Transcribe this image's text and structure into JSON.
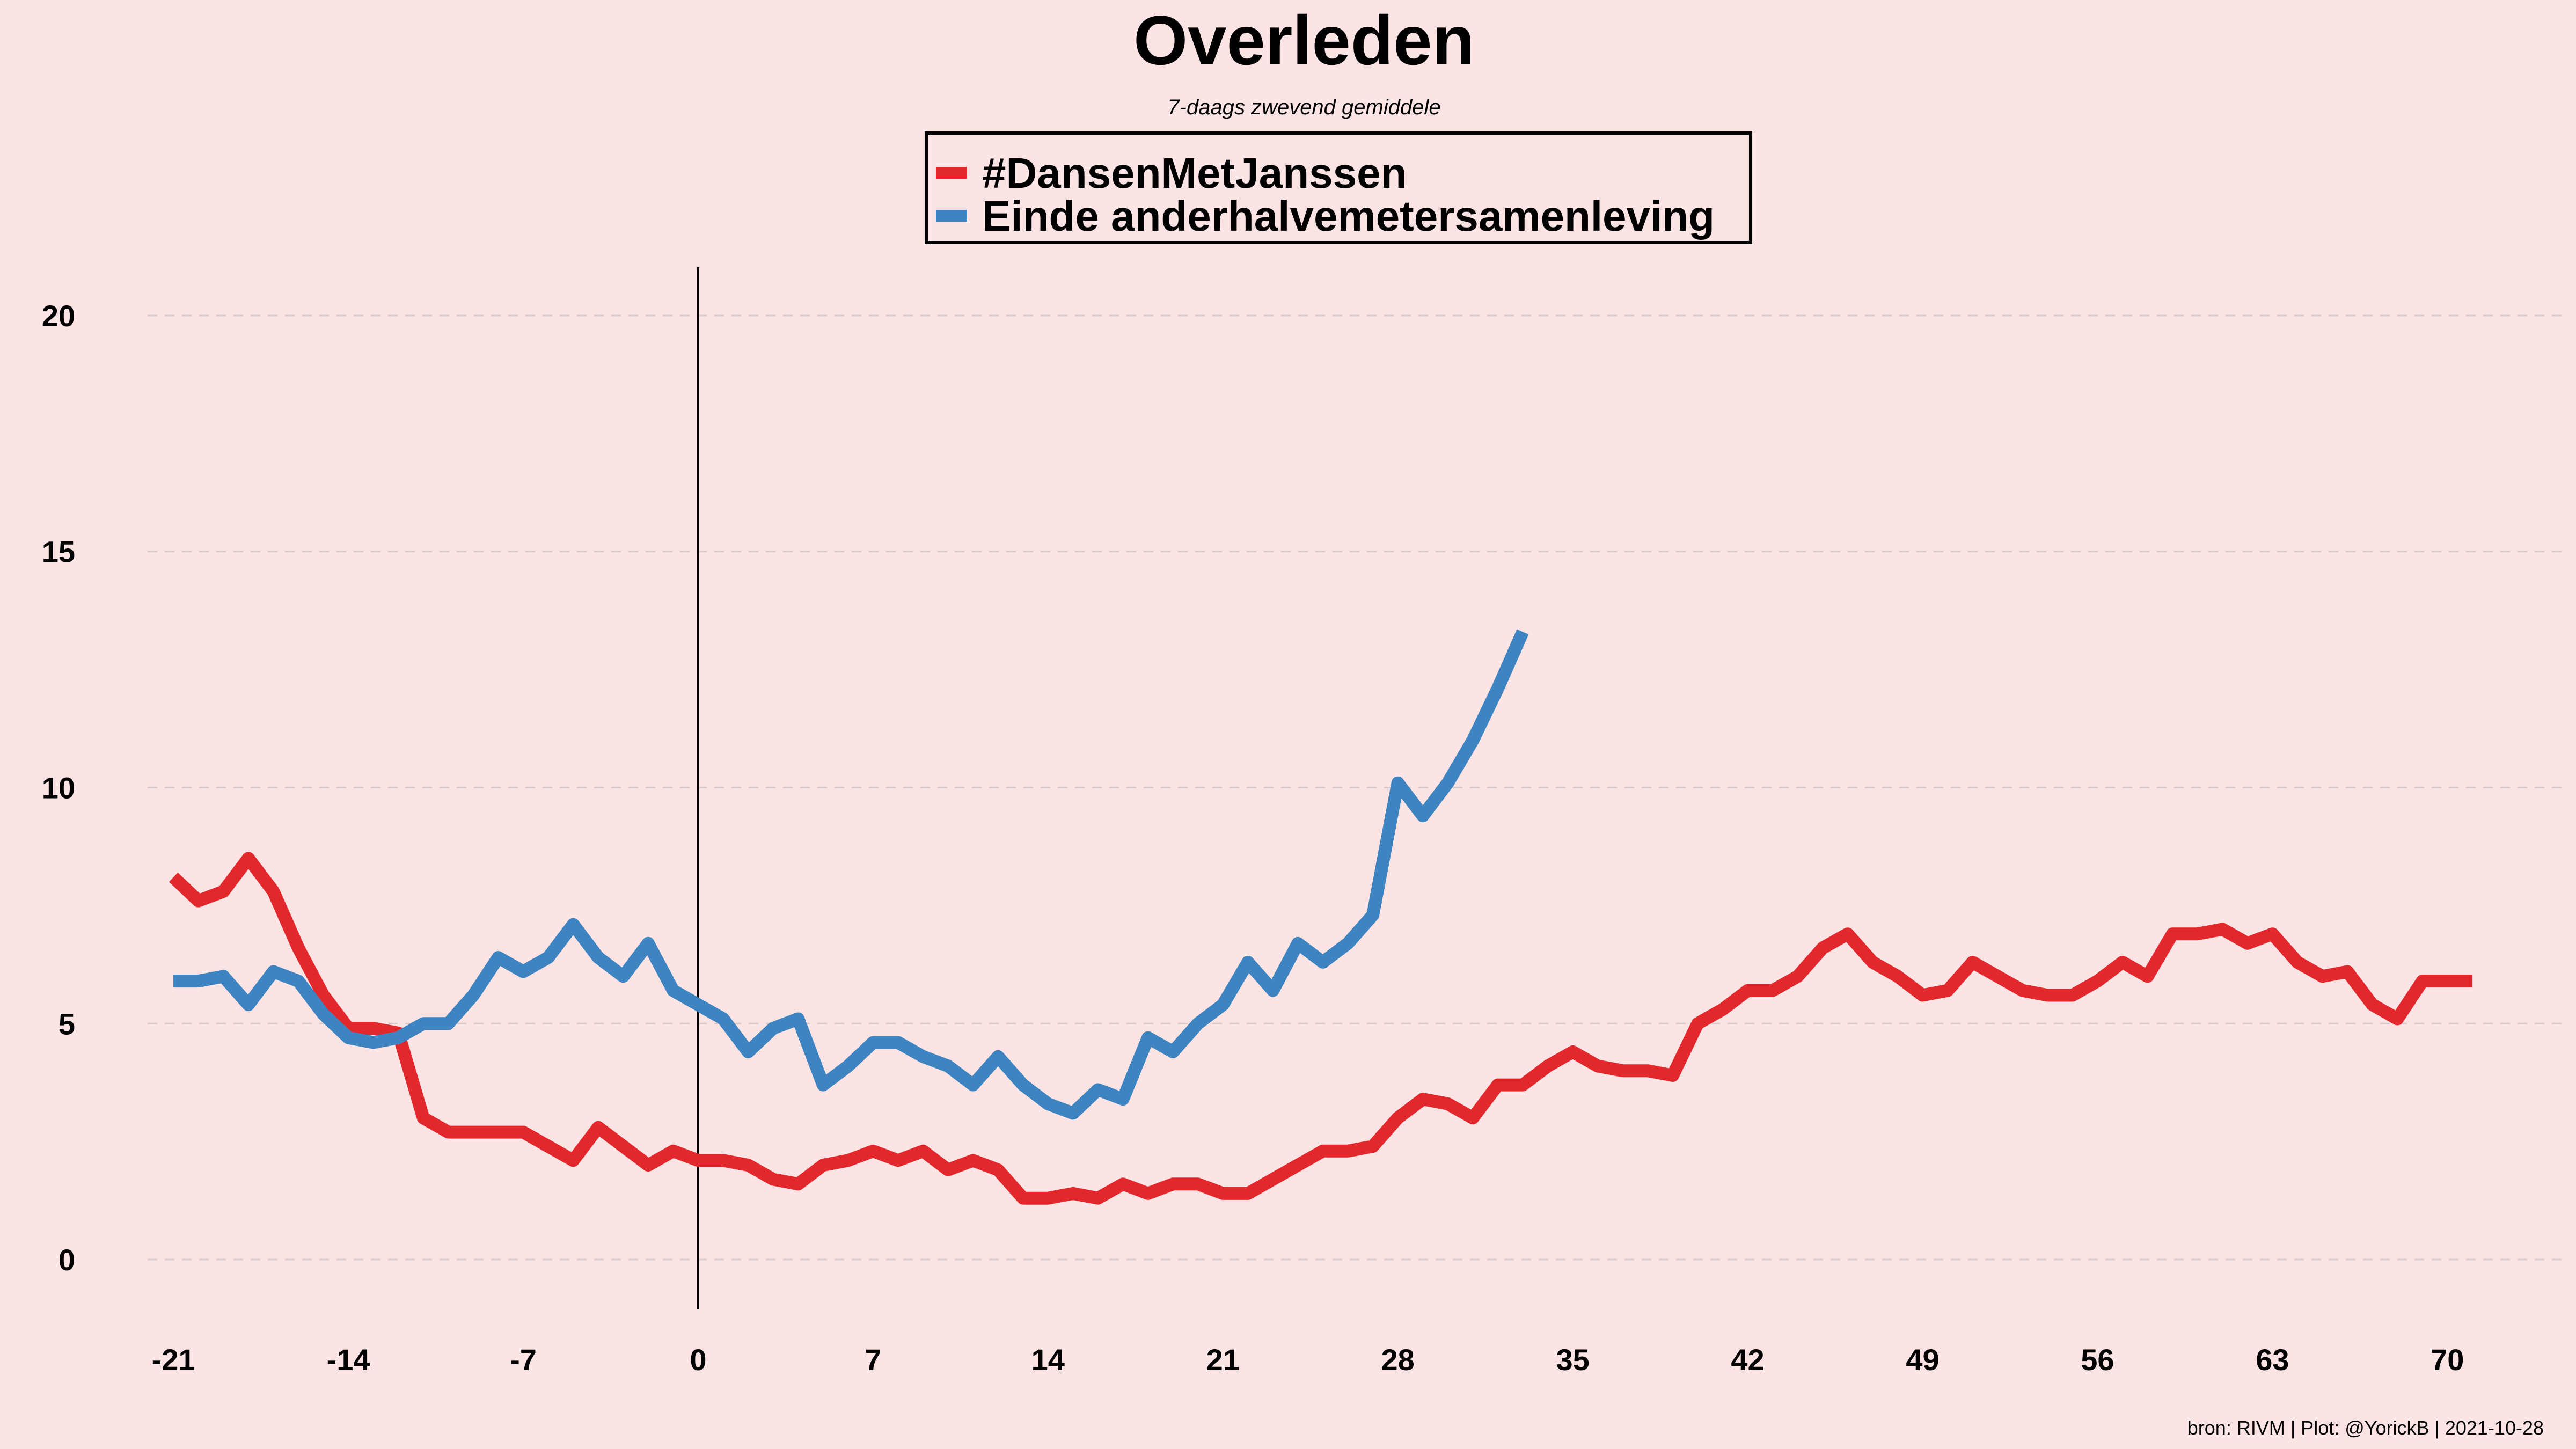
{
  "chart_data": {
    "type": "line",
    "title": "Overleden",
    "subtitle": "7-daags zwevend gemiddele",
    "caption": "bron: RIVM  | Plot: @YorickB |  2021-10-28",
    "xlabel": "",
    "ylabel": "",
    "xlim": [
      -23,
      73
    ],
    "ylim": [
      -1,
      21
    ],
    "x_ticks": [
      -21,
      -14,
      -7,
      0,
      7,
      14,
      21,
      28,
      35,
      42,
      49,
      56,
      63,
      70
    ],
    "y_ticks": [
      0,
      5,
      10,
      15,
      20
    ],
    "grid": "horizontal dashed",
    "vertical_line_at": 0,
    "legend_position": "top-center",
    "colors": {
      "background": "#fde4e4",
      "grid": "#d9cccc"
    },
    "series": [
      {
        "name": "#DansenMetJanssen",
        "color": "#e3282d",
        "x_start": -21,
        "values": [
          8.1,
          7.6,
          7.8,
          8.5,
          7.8,
          6.6,
          5.6,
          4.9,
          4.9,
          4.8,
          3.0,
          2.7,
          2.7,
          2.7,
          2.7,
          2.4,
          2.1,
          2.8,
          2.4,
          2.0,
          2.3,
          2.1,
          2.1,
          2.0,
          1.7,
          1.6,
          2.0,
          2.1,
          2.3,
          2.1,
          2.3,
          1.9,
          2.1,
          1.9,
          1.3,
          1.3,
          1.4,
          1.3,
          1.6,
          1.4,
          1.6,
          1.6,
          1.4,
          1.4,
          1.7,
          2.0,
          2.3,
          2.3,
          2.4,
          3.0,
          3.4,
          3.3,
          3.0,
          3.7,
          3.7,
          4.1,
          4.4,
          4.1,
          4.0,
          4.0,
          3.9,
          5.0,
          5.3,
          5.7,
          5.7,
          6.0,
          6.6,
          6.9,
          6.3,
          6.0,
          5.6,
          5.7,
          6.3,
          6.0,
          5.7,
          5.6,
          5.6,
          5.9,
          6.3,
          6.0,
          6.9,
          6.9,
          7.0,
          6.7,
          6.9,
          6.3,
          6.0,
          6.1,
          5.4,
          5.1,
          5.9,
          5.9,
          5.9
        ]
      },
      {
        "name": "Einde anderhalvemetersamenleving",
        "color": "#3d84c1",
        "x_start": -21,
        "values": [
          5.9,
          5.9,
          6.0,
          5.4,
          6.1,
          5.9,
          5.2,
          4.7,
          4.6,
          4.7,
          5.0,
          5.0,
          5.6,
          6.4,
          6.1,
          6.4,
          7.1,
          6.4,
          6.0,
          6.7,
          5.7,
          5.4,
          5.1,
          4.4,
          4.9,
          5.1,
          3.7,
          4.1,
          4.6,
          4.6,
          4.3,
          4.1,
          3.7,
          4.3,
          3.7,
          3.3,
          3.1,
          3.6,
          3.4,
          4.7,
          4.4,
          5.0,
          5.4,
          6.3,
          5.7,
          6.7,
          6.3,
          6.7,
          7.3,
          10.1,
          9.4,
          10.1,
          11.0,
          12.1,
          13.3
        ]
      }
    ]
  }
}
